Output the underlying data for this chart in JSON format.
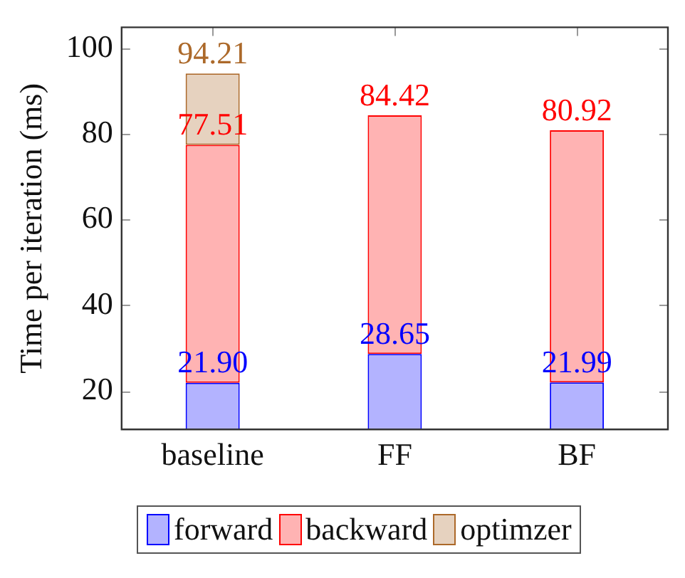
{
  "chart_data": {
    "type": "bar",
    "stacked": true,
    "ylabel": "Time per iteration (ms)",
    "categories": [
      "baseline",
      "FF",
      "BF"
    ],
    "series": [
      {
        "name": "forward",
        "color": "#b3b3ff",
        "values": [
          21.9,
          28.65,
          21.99
        ],
        "value_labels": [
          "21.90",
          "28.65",
          "21.99"
        ]
      },
      {
        "name": "backward",
        "color": "#ffb3b3",
        "values": [
          55.61,
          55.77,
          58.93
        ]
      },
      {
        "name": "optimzer",
        "color": "#e6d2bf",
        "values": [
          16.7,
          null,
          null
        ]
      }
    ],
    "annotations": [
      {
        "text": "77.51",
        "x": "baseline",
        "y": 77.51
      },
      {
        "text": "84.42",
        "x": "FF",
        "y": 84.42
      },
      {
        "text": "80.92",
        "x": "BF",
        "y": 80.92
      },
      {
        "text": "94.21",
        "x": "baseline",
        "y": 94.21
      }
    ],
    "ylim": [
      11,
      105
    ],
    "yticks": [
      20,
      40,
      60,
      80,
      100
    ],
    "grid": false,
    "legend": "bottom"
  }
}
